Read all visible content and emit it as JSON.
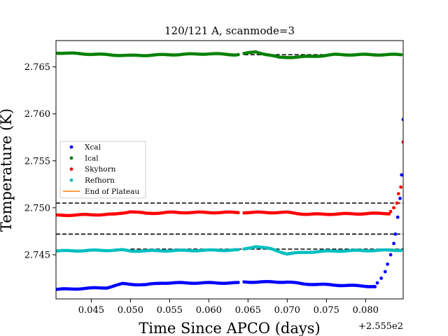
{
  "chart_data": {
    "type": "scatter",
    "title": "120/121 A, scanmode=3",
    "xlabel": "Time Since APCO (days)",
    "ylabel": "Temperature (K)",
    "x_offset_label": "+2.555e2",
    "xlim": [
      0.0405,
      0.0848
    ],
    "ylim": [
      2.7403,
      2.7678
    ],
    "x_ticks": [
      0.045,
      0.05,
      0.055,
      0.06,
      0.065,
      0.07,
      0.075,
      0.08
    ],
    "x_tick_labels": [
      "0.045",
      "0.050",
      "0.055",
      "0.060",
      "0.065",
      "0.070",
      "0.075",
      "0.080"
    ],
    "y_ticks": [
      2.745,
      2.75,
      2.755,
      2.76,
      2.765
    ],
    "y_tick_labels": [
      "2.745",
      "2.750",
      "2.755",
      "2.760",
      "2.765"
    ],
    "legend_position": "center-left",
    "grid": false,
    "x_range": [
      0.0405,
      0.0845
    ],
    "gap": [
      0.0639,
      0.0643
    ],
    "series": [
      {
        "name": "Xcal",
        "color": "#0000ff",
        "marker": "dot",
        "profile": [
          [
            0.0405,
            2.7413
          ],
          [
            0.047,
            2.7415
          ],
          [
            0.049,
            2.7419
          ],
          [
            0.052,
            2.7418
          ],
          [
            0.054,
            2.742
          ],
          [
            0.064,
            2.742
          ],
          [
            0.0645,
            2.7421
          ],
          [
            0.07,
            2.7421
          ],
          [
            0.072,
            2.7419
          ],
          [
            0.082,
            2.7416
          ]
        ],
        "rise": [
          [
            0.0812,
            2.7416
          ],
          [
            0.0815,
            2.742
          ],
          [
            0.082,
            2.7425
          ],
          [
            0.0825,
            2.7432
          ],
          [
            0.0828,
            2.744
          ],
          [
            0.0832,
            2.745
          ],
          [
            0.0836,
            2.7462
          ],
          [
            0.0838,
            2.7472
          ],
          [
            0.0841,
            2.749
          ],
          [
            0.0844,
            2.751
          ],
          [
            0.0846,
            2.7535
          ],
          [
            0.0848,
            2.7594
          ]
        ]
      },
      {
        "name": "Ical",
        "color": "#008000",
        "marker": "dot",
        "profile": [
          [
            0.0405,
            2.7665
          ],
          [
            0.05,
            2.7662
          ],
          [
            0.06,
            2.7664
          ],
          [
            0.0635,
            2.7663
          ],
          [
            0.0645,
            2.7664
          ],
          [
            0.066,
            2.7666
          ],
          [
            0.069,
            2.766
          ],
          [
            0.073,
            2.7661
          ],
          [
            0.076,
            2.7663
          ],
          [
            0.0848,
            2.7663
          ]
        ]
      },
      {
        "name": "Skyhorn",
        "color": "#ff0000",
        "marker": "dot",
        "profile": [
          [
            0.0405,
            2.7492
          ],
          [
            0.048,
            2.7493
          ],
          [
            0.05,
            2.7496
          ],
          [
            0.052,
            2.7494
          ],
          [
            0.055,
            2.7495
          ],
          [
            0.0638,
            2.7495
          ],
          [
            0.0645,
            2.7495
          ],
          [
            0.07,
            2.7495
          ],
          [
            0.0727,
            2.7493
          ],
          [
            0.082,
            2.7494
          ]
        ],
        "rise": [
          [
            0.0832,
            2.7496
          ],
          [
            0.0836,
            2.75
          ],
          [
            0.084,
            2.7505
          ],
          [
            0.0842,
            2.7515
          ],
          [
            0.0845,
            2.7522
          ],
          [
            0.0848,
            2.757
          ]
        ]
      },
      {
        "name": "Refhorn",
        "color": "#00bfbf",
        "marker": "dot",
        "profile": [
          [
            0.0405,
            2.7454
          ],
          [
            0.049,
            2.7455
          ],
          [
            0.05,
            2.7454
          ],
          [
            0.0638,
            2.7455
          ],
          [
            0.0645,
            2.7456
          ],
          [
            0.066,
            2.7459
          ],
          [
            0.068,
            2.7456
          ],
          [
            0.07,
            2.7451
          ],
          [
            0.073,
            2.7453
          ],
          [
            0.076,
            2.7454
          ],
          [
            0.0848,
            2.7455
          ]
        ]
      },
      {
        "name": "End of Plateau",
        "color": "#ff7f0e",
        "marker": "line",
        "profile": []
      }
    ],
    "reference_lines": [
      {
        "y": 2.7663,
        "x": [
          0.0645,
          0.0848
        ],
        "color": "#000000",
        "style": "dashed"
      },
      {
        "y": 2.7505,
        "x": [
          0.0405,
          0.0848
        ],
        "color": "#000000",
        "style": "dashed"
      },
      {
        "y": 2.7472,
        "x": [
          0.0405,
          0.0848
        ],
        "color": "#000000",
        "style": "dashed"
      },
      {
        "y": 2.7456,
        "x": [
          0.05,
          0.0848
        ],
        "color": "#000000",
        "style": "dashed"
      }
    ]
  }
}
